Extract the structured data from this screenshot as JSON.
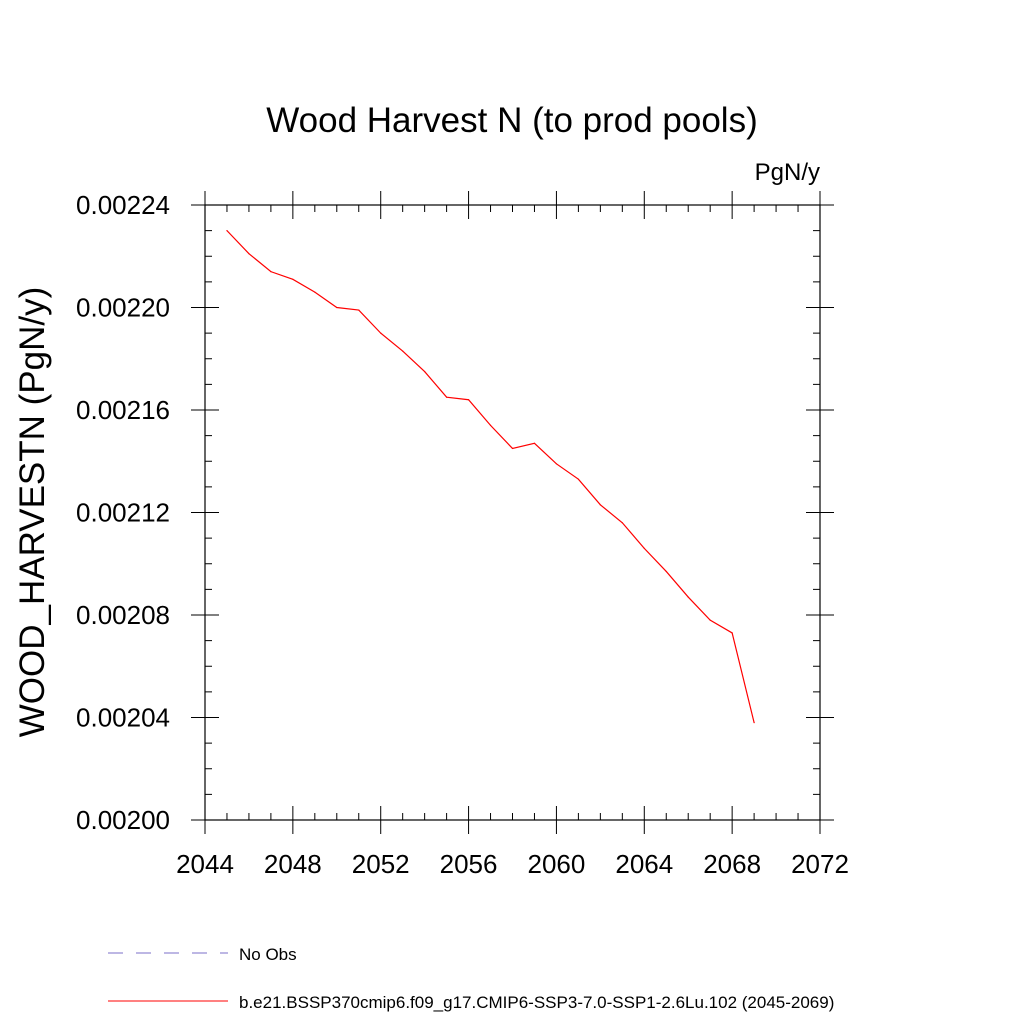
{
  "chart_data": {
    "type": "line",
    "title": "Wood Harvest N (to prod pools)",
    "units_label": "PgN/y",
    "ylabel": "WOOD_HARVESTN  (PgN/y)",
    "xlabel": "",
    "xlim": [
      2044,
      2072
    ],
    "ylim": [
      0.002,
      0.00224
    ],
    "x_ticks": [
      2044,
      2048,
      2052,
      2056,
      2060,
      2064,
      2068,
      2072
    ],
    "x_tick_labels": [
      "2044",
      "2048",
      "2052",
      "2056",
      "2060",
      "2064",
      "2068",
      "2072"
    ],
    "y_ticks": [
      0.002,
      0.00204,
      0.00208,
      0.00212,
      0.00216,
      0.0022,
      0.00224
    ],
    "y_tick_labels": [
      "0.00200",
      "0.00204",
      "0.00208",
      "0.00212",
      "0.00216",
      "0.00220",
      "0.00224"
    ],
    "grid": false,
    "legend_position": "bottom-left",
    "series": [
      {
        "name": "b.e21.BSSP370cmip6.f09_g17.CMIP6-SSP3-7.0-SSP1-2.6Lu.102 (2045-2069)",
        "color": "#ff0000",
        "style": "solid",
        "x": [
          2045,
          2046,
          2047,
          2048,
          2049,
          2050,
          2051,
          2052,
          2053,
          2054,
          2055,
          2056,
          2057,
          2058,
          2059,
          2060,
          2061,
          2062,
          2063,
          2064,
          2065,
          2066,
          2067,
          2068,
          2069
        ],
        "y": [
          0.00223,
          0.002221,
          0.002214,
          0.002211,
          0.002206,
          0.0022,
          0.002199,
          0.00219,
          0.002183,
          0.002175,
          0.002165,
          0.002164,
          0.002154,
          0.002145,
          0.002147,
          0.002139,
          0.002133,
          0.002123,
          0.002116,
          0.002106,
          0.002097,
          0.002087,
          0.002078,
          0.002073,
          0.002038
        ]
      }
    ],
    "legend": [
      {
        "label": "No Obs",
        "color": "#7b6fc9",
        "style": "dashed"
      },
      {
        "label": "b.e21.BSSP370cmip6.f09_g17.CMIP6-SSP3-7.0-SSP1-2.6Lu.102 (2045-2069)",
        "color": "#ff0000",
        "style": "solid"
      }
    ]
  }
}
